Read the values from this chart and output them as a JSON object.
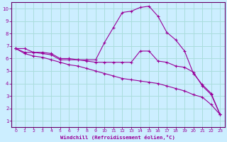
{
  "background_color": "#cceeff",
  "line_color": "#990099",
  "grid_color": "#aadddd",
  "spine_color": "#660066",
  "xlabel": "Windchill (Refroidissement éolien,°C)",
  "xlim": [
    -0.5,
    23.5
  ],
  "ylim": [
    0.5,
    10.5
  ],
  "xticks": [
    0,
    1,
    2,
    3,
    4,
    5,
    6,
    7,
    8,
    9,
    10,
    11,
    12,
    13,
    14,
    15,
    16,
    17,
    18,
    19,
    20,
    21,
    22,
    23
  ],
  "yticks": [
    1,
    2,
    3,
    4,
    5,
    6,
    7,
    8,
    9,
    10
  ],
  "line1_x": [
    0,
    1,
    2,
    3,
    4,
    5,
    6,
    7,
    8,
    9,
    10,
    11,
    12,
    13,
    14,
    15,
    16,
    17,
    18,
    19,
    20,
    21,
    22,
    23
  ],
  "line1_y": [
    6.8,
    6.8,
    6.5,
    6.5,
    6.4,
    6.0,
    6.0,
    5.9,
    5.9,
    5.9,
    7.3,
    8.5,
    9.7,
    9.8,
    10.1,
    10.2,
    9.4,
    8.1,
    7.5,
    6.6,
    4.8,
    3.9,
    3.2,
    1.5
  ],
  "line2_x": [
    0,
    1,
    2,
    3,
    4,
    5,
    6,
    7,
    8,
    9,
    10,
    11,
    12,
    13,
    14,
    15,
    16,
    17,
    18,
    19,
    20,
    21,
    22,
    23
  ],
  "line2_y": [
    6.8,
    6.5,
    6.5,
    6.4,
    6.3,
    5.9,
    5.9,
    5.9,
    5.8,
    5.7,
    5.7,
    5.7,
    5.7,
    5.7,
    6.6,
    6.6,
    5.8,
    5.7,
    5.4,
    5.3,
    4.9,
    3.8,
    3.1,
    1.5
  ],
  "line3_x": [
    0,
    1,
    2,
    3,
    4,
    5,
    6,
    7,
    8,
    9,
    10,
    11,
    12,
    13,
    14,
    15,
    16,
    17,
    18,
    19,
    20,
    21,
    22,
    23
  ],
  "line3_y": [
    6.8,
    6.4,
    6.2,
    6.1,
    5.9,
    5.7,
    5.5,
    5.4,
    5.2,
    5.0,
    4.8,
    4.6,
    4.4,
    4.3,
    4.2,
    4.1,
    4.0,
    3.8,
    3.6,
    3.4,
    3.1,
    2.9,
    2.3,
    1.5
  ]
}
